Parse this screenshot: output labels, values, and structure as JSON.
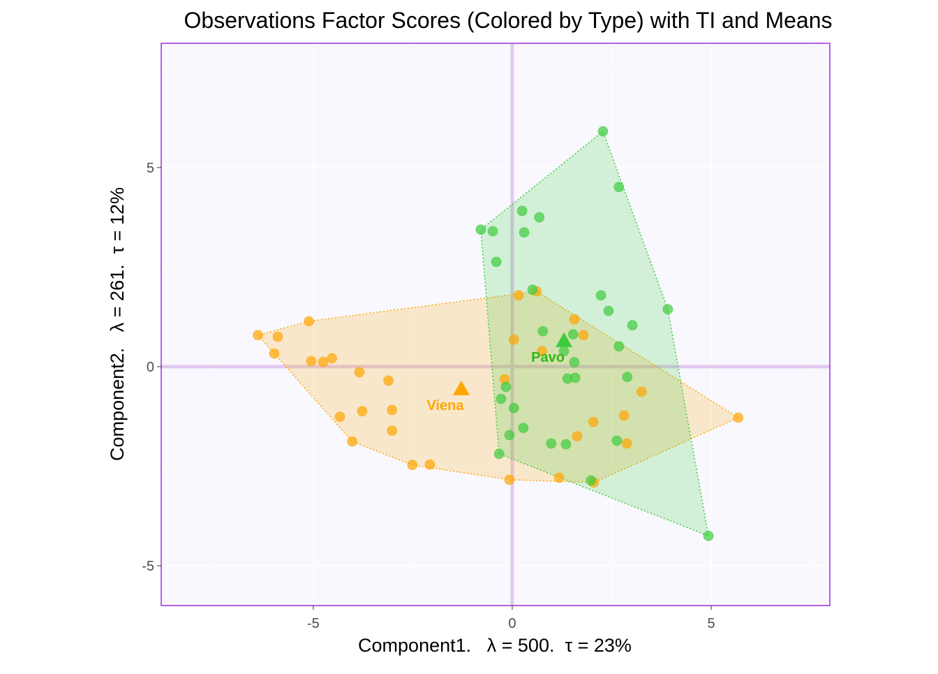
{
  "chart_data": {
    "type": "scatter",
    "title": "Observations Factor Scores (Colored by Type) with TI and Means",
    "xlabel": "Component1.   λ = 500.  τ = 23%",
    "ylabel": "Component2.   λ = 261.  τ = 12%",
    "xlim": [
      -8.82,
      7.98
    ],
    "ylim": [
      -6.0,
      8.12
    ],
    "xticks": [
      -5,
      0,
      5
    ],
    "yticks": [
      -5,
      0,
      5
    ],
    "grid": true,
    "colors": {
      "panel_bg": "#F8F8FE",
      "panel_border": "#9B30D9",
      "axis_lines": "#E2C9F0",
      "Viena": "#FFA500",
      "Pavo": "#3DCC3D",
      "Pavo_label": "#33B814"
    },
    "series": [
      {
        "name": "Viena",
        "color": "#FFA500",
        "points": [
          [
            0.16,
            1.79
          ],
          [
            0.61,
            1.89
          ],
          [
            1.56,
            1.19
          ],
          [
            1.79,
            0.79
          ],
          [
            0.04,
            0.68
          ],
          [
            0.75,
            0.39
          ],
          [
            -0.19,
            -0.32
          ],
          [
            3.25,
            -0.63
          ],
          [
            2.81,
            -1.23
          ],
          [
            2.04,
            -1.39
          ],
          [
            1.63,
            -1.75
          ],
          [
            2.88,
            -1.93
          ],
          [
            -0.07,
            -2.84
          ],
          [
            1.18,
            -2.79
          ],
          [
            2.05,
            -2.91
          ],
          [
            -6.39,
            0.79
          ],
          [
            -5.89,
            0.75
          ],
          [
            -5.11,
            1.14
          ],
          [
            -5.98,
            0.33
          ],
          [
            -5.05,
            0.14
          ],
          [
            -4.75,
            0.12
          ],
          [
            -4.53,
            0.21
          ],
          [
            -3.84,
            -0.14
          ],
          [
            -3.11,
            -0.35
          ],
          [
            -4.33,
            -1.26
          ],
          [
            -3.77,
            -1.12
          ],
          [
            -3.02,
            -1.09
          ],
          [
            -3.02,
            -1.61
          ],
          [
            -4.02,
            -1.88
          ],
          [
            -2.51,
            -2.47
          ],
          [
            -2.07,
            -2.46
          ],
          [
            5.68,
            -1.28
          ]
        ],
        "mean": [
          -1.28,
          -0.56
        ]
      },
      {
        "name": "Pavo",
        "color": "#3DCC3D",
        "points": [
          [
            0.51,
            1.93
          ],
          [
            2.23,
            1.79
          ],
          [
            2.42,
            1.4
          ],
          [
            3.02,
            1.04
          ],
          [
            3.91,
            1.44
          ],
          [
            0.77,
            0.89
          ],
          [
            1.53,
            0.81
          ],
          [
            1.3,
            0.39
          ],
          [
            1.56,
            0.11
          ],
          [
            2.68,
            0.51
          ],
          [
            1.39,
            -0.3
          ],
          [
            1.58,
            -0.28
          ],
          [
            2.89,
            -0.26
          ],
          [
            -0.16,
            -0.51
          ],
          [
            -0.28,
            -0.81
          ],
          [
            0.04,
            -1.04
          ],
          [
            0.28,
            -1.54
          ],
          [
            -0.07,
            -1.72
          ],
          [
            0.98,
            -1.93
          ],
          [
            1.35,
            -1.95
          ],
          [
            2.63,
            -1.86
          ],
          [
            -0.33,
            -2.19
          ],
          [
            1.98,
            -2.86
          ],
          [
            2.28,
            5.91
          ],
          [
            2.68,
            4.51
          ],
          [
            0.25,
            3.91
          ],
          [
            0.68,
            3.75
          ],
          [
            -0.79,
            3.44
          ],
          [
            -0.49,
            3.4
          ],
          [
            0.3,
            3.37
          ],
          [
            -0.4,
            2.63
          ],
          [
            4.93,
            -4.25
          ]
        ],
        "mean": [
          1.3,
          0.65
        ]
      }
    ]
  }
}
